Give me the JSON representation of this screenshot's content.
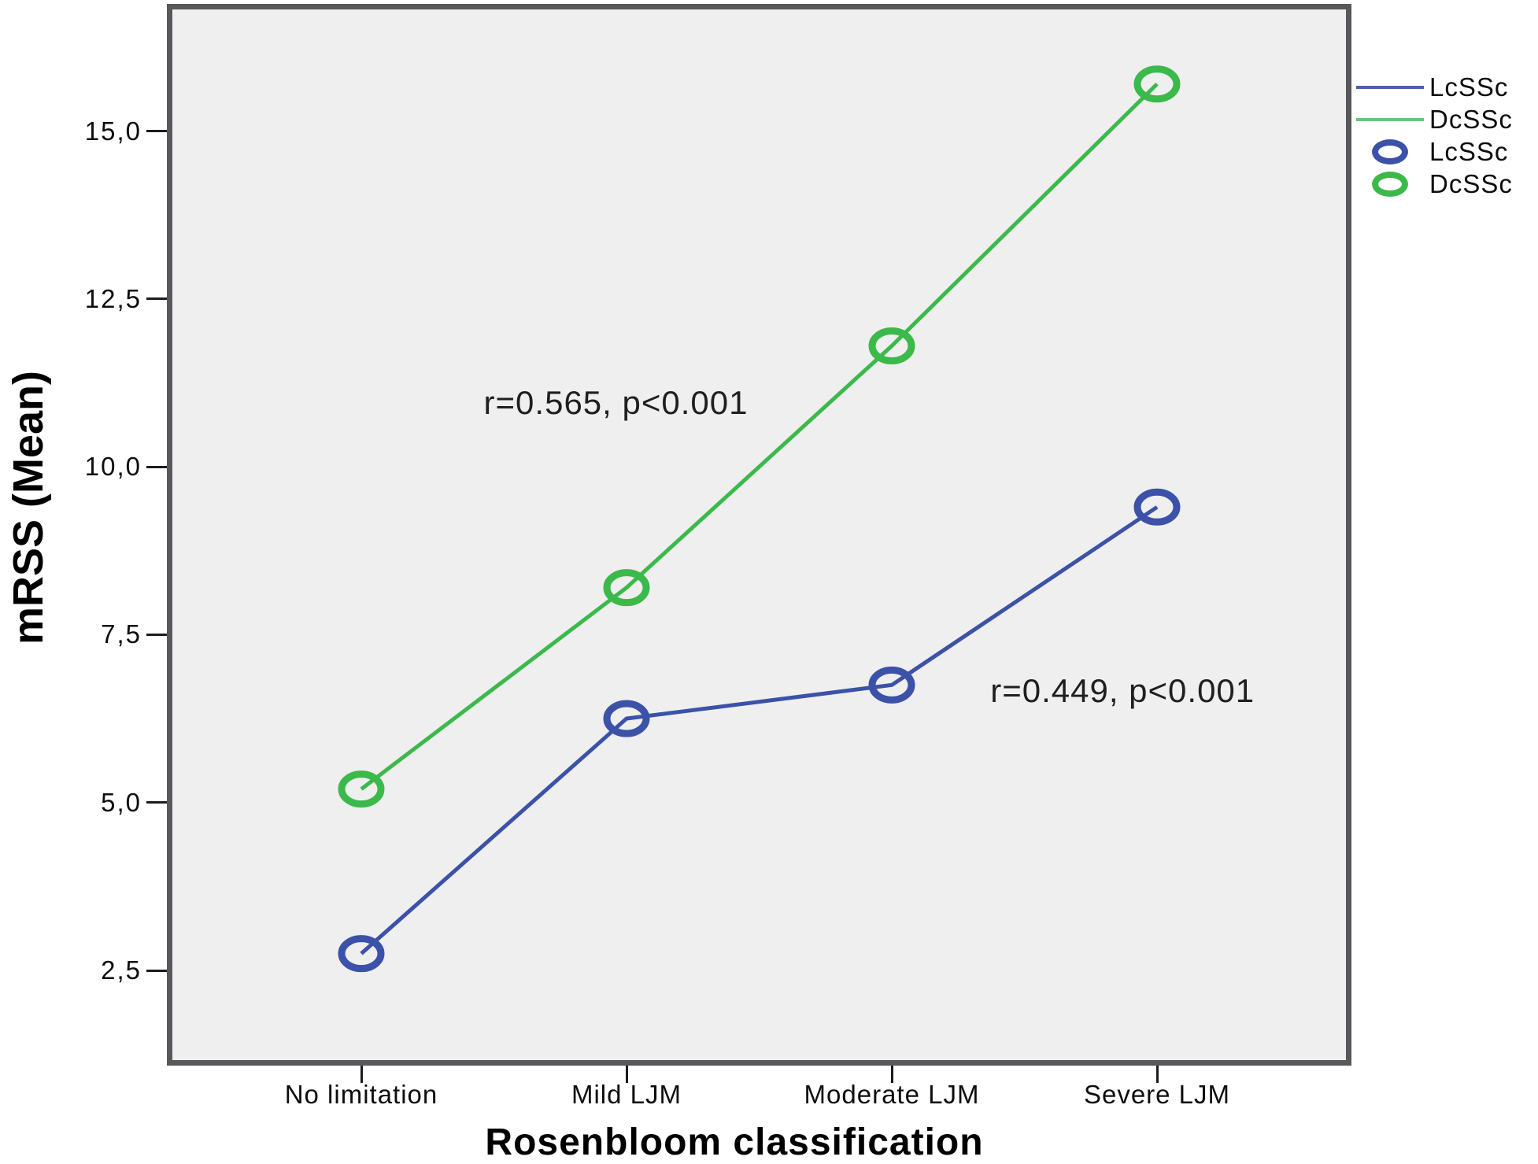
{
  "figure": {
    "background": "#ffffff",
    "plot_background": "#efefef",
    "plot_border_color": "#58585a",
    "tick_color": "#1c1c1c",
    "text_color": "#0d0d0d"
  },
  "chart_data": {
    "type": "line",
    "title": "",
    "xlabel": "Rosenbloom classification",
    "ylabel": "mRSS (Mean)",
    "categories": [
      "No limitation",
      "Mild LJM",
      "Moderate LJM",
      "Severe LJM"
    ],
    "series": [
      {
        "name": "LcSSc",
        "color": "#3b52a8",
        "marker": "open-circle",
        "values": [
          2.75,
          6.25,
          6.75,
          9.4
        ]
      },
      {
        "name": "DcSSc",
        "color": "#3cb94b",
        "marker": "open-circle",
        "values": [
          5.2,
          8.2,
          11.8,
          15.7
        ]
      }
    ],
    "y_axis": {
      "ticks": [
        {
          "label": "2,5",
          "value": 2.5
        },
        {
          "label": "5,0",
          "value": 5.0
        },
        {
          "label": "7,5",
          "value": 7.5
        },
        {
          "label": "10,0",
          "value": 10.0
        },
        {
          "label": "12,5",
          "value": 12.5
        },
        {
          "label": "15,0",
          "value": 15.0
        }
      ],
      "ylim": [
        1.1,
        16.8
      ],
      "decimal_separator": "comma"
    },
    "grid": false,
    "legend_position": "right-top",
    "legend": [
      {
        "label": "LcSSc",
        "swatch": "line",
        "color": "#4f61ae"
      },
      {
        "label": "DcSSc",
        "swatch": "line",
        "color": "#66c877"
      },
      {
        "label": "LcSSc",
        "swatch": "circle",
        "color": "#3b52a8"
      },
      {
        "label": "DcSSc",
        "swatch": "circle",
        "color": "#3cb94b"
      }
    ],
    "annotations": [
      {
        "text": "r=0.565, p<0.001",
        "series": "DcSSc",
        "at_x": 0.96,
        "at_y": 10.95
      },
      {
        "text": "r=0.449, p<0.001",
        "series": "LcSSc",
        "at_x": 2.87,
        "at_y": 6.66
      }
    ]
  }
}
